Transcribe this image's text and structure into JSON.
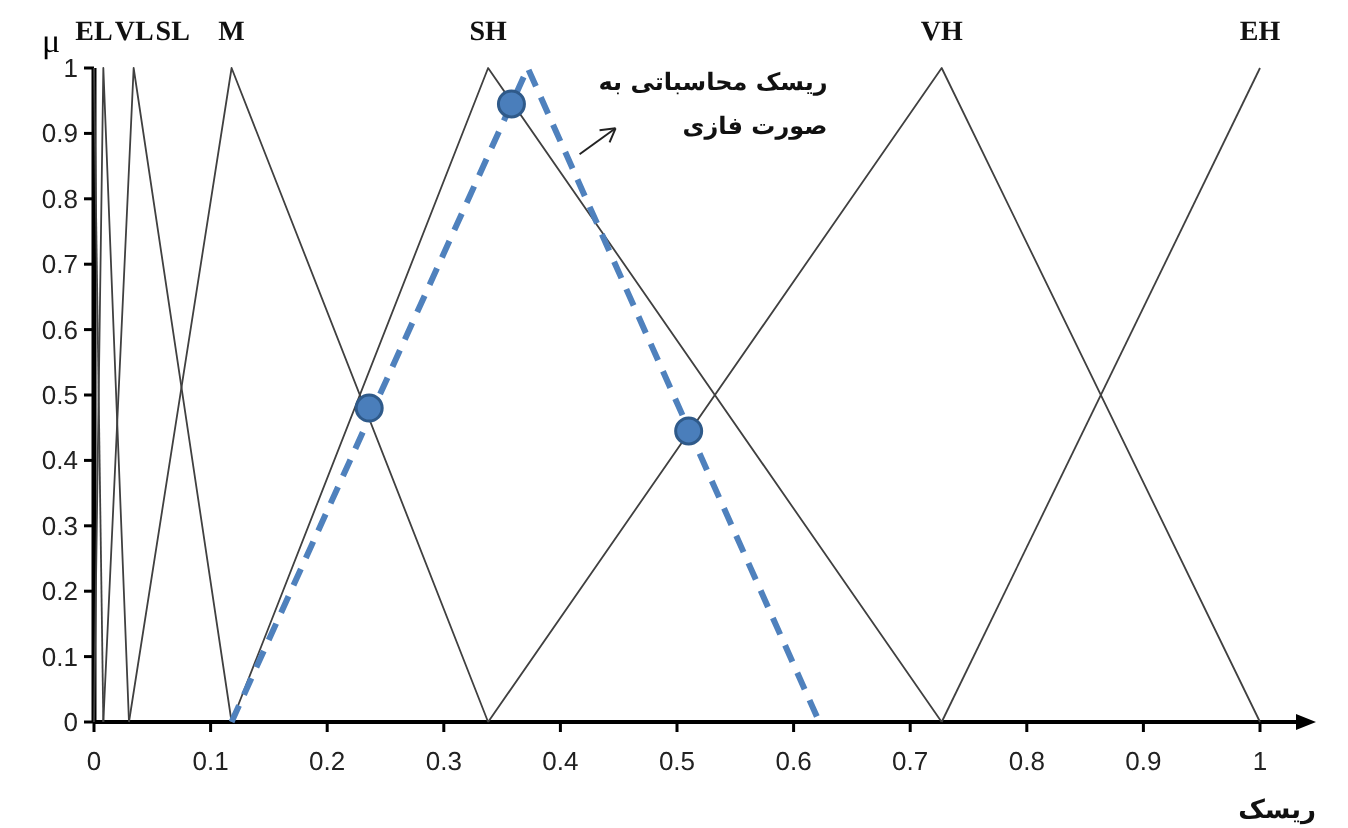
{
  "chart_data": {
    "type": "line",
    "ylabel": "μ",
    "xlabel": "ریسک",
    "xlim": [
      0,
      1
    ],
    "ylim": [
      0,
      1
    ],
    "xticks": [
      0,
      0.1,
      0.2,
      0.3,
      0.4,
      0.5,
      0.6,
      0.7,
      0.8,
      0.9,
      1
    ],
    "yticks": [
      0,
      0.1,
      0.2,
      0.3,
      0.4,
      0.5,
      0.6,
      0.7,
      0.8,
      0.9,
      1
    ],
    "grid": false,
    "marker": "none",
    "line_style": "solid",
    "series": [
      {
        "name": "EL",
        "color": "#404040",
        "x": [
          0,
          0.008
        ],
        "values": [
          1,
          0
        ]
      },
      {
        "name": "VL",
        "color": "#404040",
        "x": [
          0,
          0.008,
          0.03
        ],
        "values": [
          0,
          1,
          0
        ]
      },
      {
        "name": "SL",
        "color": "#404040",
        "x": [
          0.008,
          0.034,
          0.118
        ],
        "values": [
          0,
          1,
          0
        ]
      },
      {
        "name": "M",
        "color": "#404040",
        "x": [
          0.03,
          0.118,
          0.338
        ],
        "values": [
          0,
          1,
          0
        ]
      },
      {
        "name": "SH",
        "color": "#404040",
        "x": [
          0.118,
          0.338,
          0.727
        ],
        "values": [
          0,
          1,
          0
        ]
      },
      {
        "name": "VH",
        "color": "#404040",
        "x": [
          0.338,
          0.727,
          1
        ],
        "values": [
          0,
          1,
          0
        ]
      },
      {
        "name": "EH",
        "color": "#404040",
        "x": [
          0.727,
          1
        ],
        "values": [
          0,
          1
        ]
      },
      {
        "type": "line",
        "color": "#4f81bd",
        "line_style": "dashed",
        "x": [
          0.118,
          0.372,
          0.622
        ],
        "values": [
          0,
          1,
          0
        ]
      },
      {
        "type": "scatter",
        "color": "#4a7ebb",
        "marker": "circle",
        "x": [
          0.236,
          0.358,
          0.51
        ],
        "values": [
          0.48,
          0.945,
          0.445
        ]
      }
    ],
    "annotations": [
      {
        "text": "ریسک محاسباتی به صورت فازی",
        "x": 0.413,
        "y": 0.865
      }
    ]
  }
}
